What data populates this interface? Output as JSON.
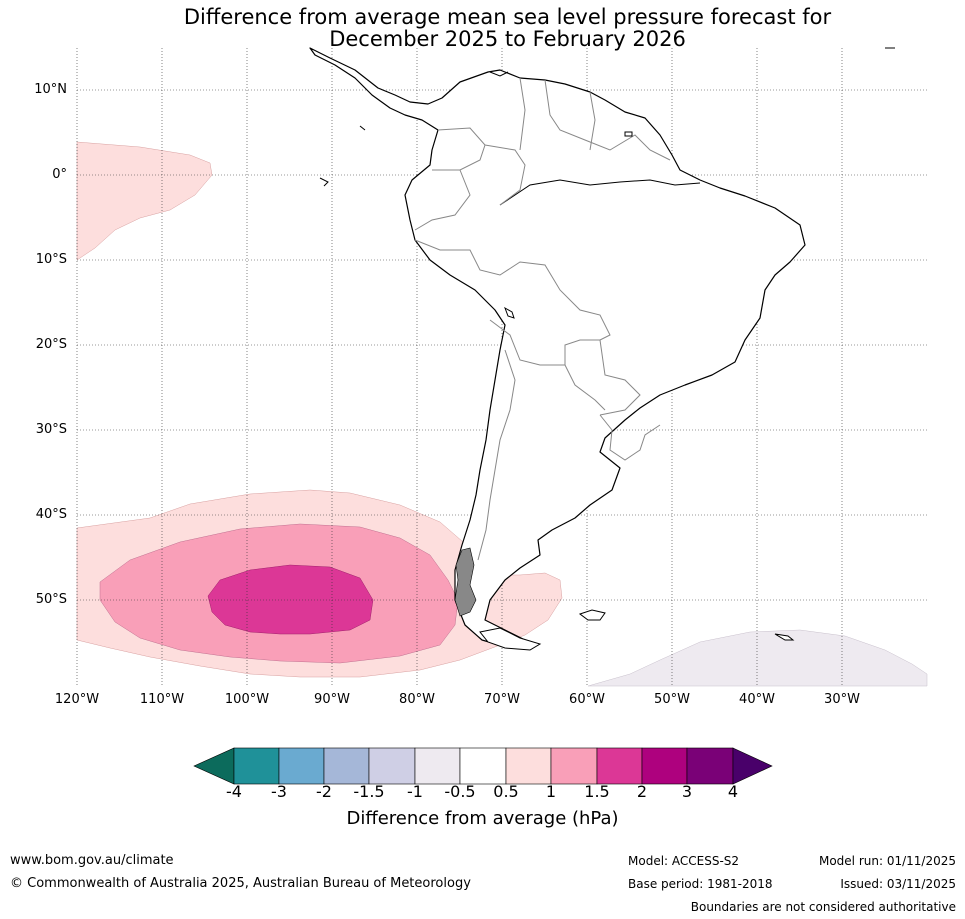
{
  "title": {
    "line1": "Difference from average mean sea level pressure forecast for",
    "line2": "December 2025 to February 2026"
  },
  "map": {
    "lat_labels": [
      "10°N",
      "0°",
      "10°S",
      "20°S",
      "30°S",
      "40°S",
      "50°S"
    ],
    "lon_labels": [
      "120°W",
      "110°W",
      "100°W",
      "90°W",
      "80°W",
      "70°W",
      "60°W",
      "50°W",
      "40°W",
      "30°W"
    ]
  },
  "colorbar": {
    "title": "Difference from average (hPa)",
    "tick_labels": [
      "-4",
      "-3",
      "-2",
      "-1.5",
      "-1",
      "-0.5",
      "0.5",
      "1",
      "1.5",
      "2",
      "3",
      "4"
    ],
    "colors": {
      "below_min": "#0c6b5c",
      "neg_4_3": "#1f9199",
      "neg_3_2": "#6aaad0",
      "neg_2_1_5": "#a5b7d8",
      "neg_1_5_1": "#cfcfe5",
      "neg_1_0_5": "#eeeaf0",
      "neutral": "#ffffff",
      "pos_0_5_1": "#fddedd",
      "pos_1_1_5": "#f99fb8",
      "pos_1_5_2": "#dc3796",
      "pos_2_3": "#ae017e",
      "pos_3_4": "#7a0177",
      "above_max": "#49006a"
    }
  },
  "footer": {
    "website": "www.bom.gov.au/climate",
    "copyright": "© Commonwealth of Australia 2025, Australian Bureau of Meteorology",
    "model": "Model: ACCESS-S2",
    "base_period": "Base period: 1981-2018",
    "model_run": "Model run: 01/11/2025",
    "issued": "Issued: 03/11/2025",
    "disclaimer": "Boundaries are not considered authoritative"
  }
}
